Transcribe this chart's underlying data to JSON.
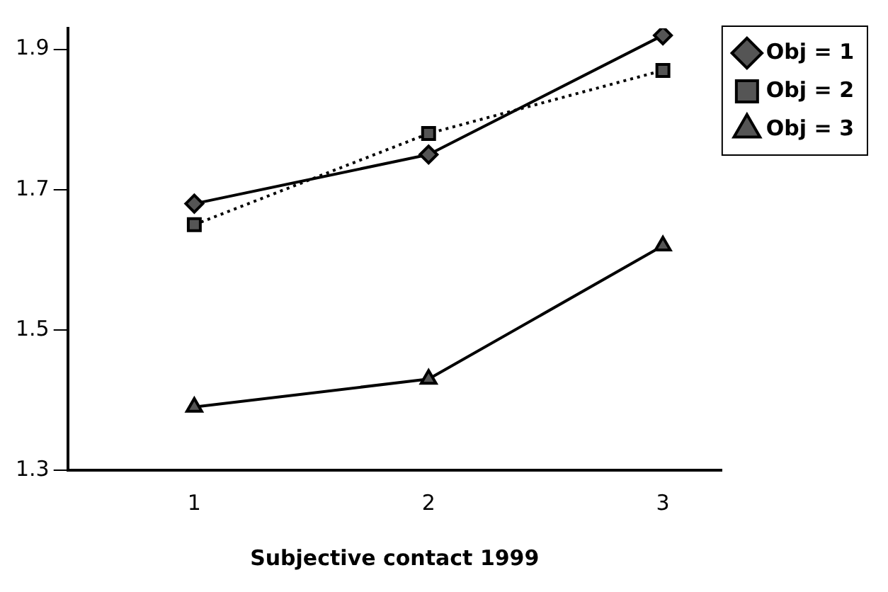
{
  "chart_data": {
    "type": "line",
    "xlabel": "Subjective contact 1999",
    "x": [
      1,
      2,
      3
    ],
    "xlim": [
      0.46,
      3.25
    ],
    "xticks": [
      1,
      2,
      3
    ],
    "ylim": [
      1.3,
      1.93
    ],
    "yticks": [
      1.3,
      1.5,
      1.7,
      1.9
    ],
    "grid": false,
    "legend": "top right",
    "series": [
      {
        "name": "Obj = 1",
        "color": "#000000",
        "marker": "diamond",
        "line_style": "solid",
        "values": [
          1.68,
          1.75,
          1.92
        ]
      },
      {
        "name": "Obj = 2",
        "color": "#000000",
        "marker": "square",
        "line_style": "dotted",
        "values": [
          1.65,
          1.78,
          1.87
        ]
      },
      {
        "name": "Obj = 3",
        "color": "#000000",
        "marker": "triangle",
        "line_style": "solid",
        "values": [
          1.39,
          1.43,
          1.62
        ]
      }
    ]
  }
}
